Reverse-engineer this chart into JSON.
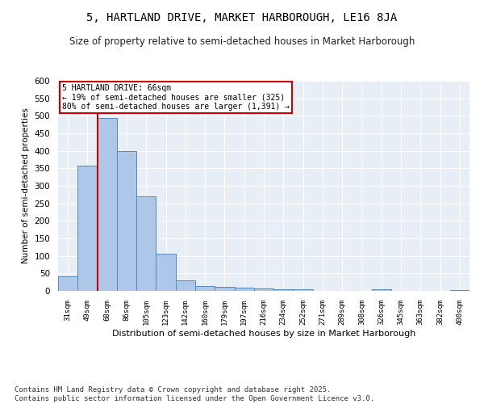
{
  "title": "5, HARTLAND DRIVE, MARKET HARBOROUGH, LE16 8JA",
  "subtitle": "Size of property relative to semi-detached houses in Market Harborough",
  "xlabel": "Distribution of semi-detached houses by size in Market Harborough",
  "ylabel": "Number of semi-detached properties",
  "categories": [
    "31sqm",
    "49sqm",
    "68sqm",
    "86sqm",
    "105sqm",
    "123sqm",
    "142sqm",
    "160sqm",
    "179sqm",
    "197sqm",
    "216sqm",
    "234sqm",
    "252sqm",
    "271sqm",
    "289sqm",
    "308sqm",
    "326sqm",
    "345sqm",
    "363sqm",
    "382sqm",
    "400sqm"
  ],
  "values": [
    42,
    357,
    495,
    400,
    270,
    107,
    31,
    15,
    12,
    10,
    6,
    5,
    4,
    1,
    0,
    0,
    4,
    0,
    0,
    0,
    3
  ],
  "bar_color": "#aec6e8",
  "bar_edge_color": "#5588bb",
  "reference_line_x": 1.5,
  "reference_line_color": "#cc0000",
  "annotation_title": "5 HARTLAND DRIVE: 66sqm",
  "annotation_line1": "← 19% of semi-detached houses are smaller (325)",
  "annotation_line2": "80% of semi-detached houses are larger (1,391) →",
  "annotation_box_color": "#cc0000",
  "ylim": [
    0,
    600
  ],
  "yticks": [
    0,
    50,
    100,
    150,
    200,
    250,
    300,
    350,
    400,
    450,
    500,
    550,
    600
  ],
  "background_color": "#e8eef5",
  "footer_line1": "Contains HM Land Registry data © Crown copyright and database right 2025.",
  "footer_line2": "Contains public sector information licensed under the Open Government Licence v3.0.",
  "title_fontsize": 10,
  "subtitle_fontsize": 8.5,
  "footer_fontsize": 6.5
}
